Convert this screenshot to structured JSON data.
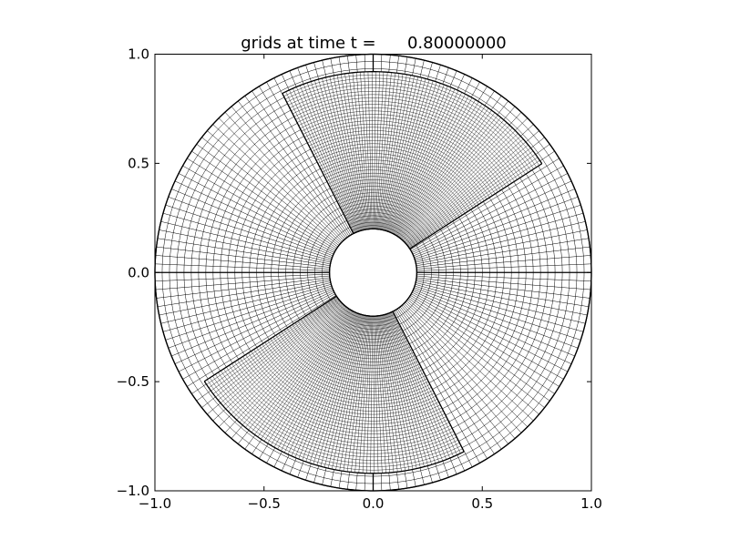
{
  "chart_data": {
    "type": "polar-grid",
    "title": "grids at time t =      0.80000000",
    "xlim": [
      -1.0,
      1.0
    ],
    "ylim": [
      -1.0,
      1.0
    ],
    "xticks": [
      "−1.0",
      "−0.5",
      "0.0",
      "0.5",
      "1.0"
    ],
    "yticks": [
      "−1.0",
      "−0.5",
      "0.0",
      "0.5",
      "1.0"
    ],
    "xtick_values": [
      -1.0,
      -0.5,
      0.0,
      0.5,
      1.0
    ],
    "ytick_values": [
      -1.0,
      -0.5,
      0.0,
      0.5,
      1.0
    ],
    "coarse_grid": {
      "r_inner": 0.2,
      "r_outer": 1.0,
      "radial_cells": 24,
      "angular_cells": 160,
      "patch_boundaries_deg": [
        0,
        90,
        180,
        270
      ]
    },
    "fine_patches": [
      {
        "r_inner": 0.2,
        "r_outer": 0.92,
        "theta_start_deg": 32.8,
        "theta_end_deg": 116.9,
        "radial_cells": 48,
        "angular_cells": 76
      },
      {
        "r_inner": 0.2,
        "r_outer": 0.92,
        "theta_start_deg": 212.8,
        "theta_end_deg": 296.9,
        "radial_cells": 48,
        "angular_cells": 76
      }
    ],
    "grid": false,
    "line_color": "#000000"
  }
}
